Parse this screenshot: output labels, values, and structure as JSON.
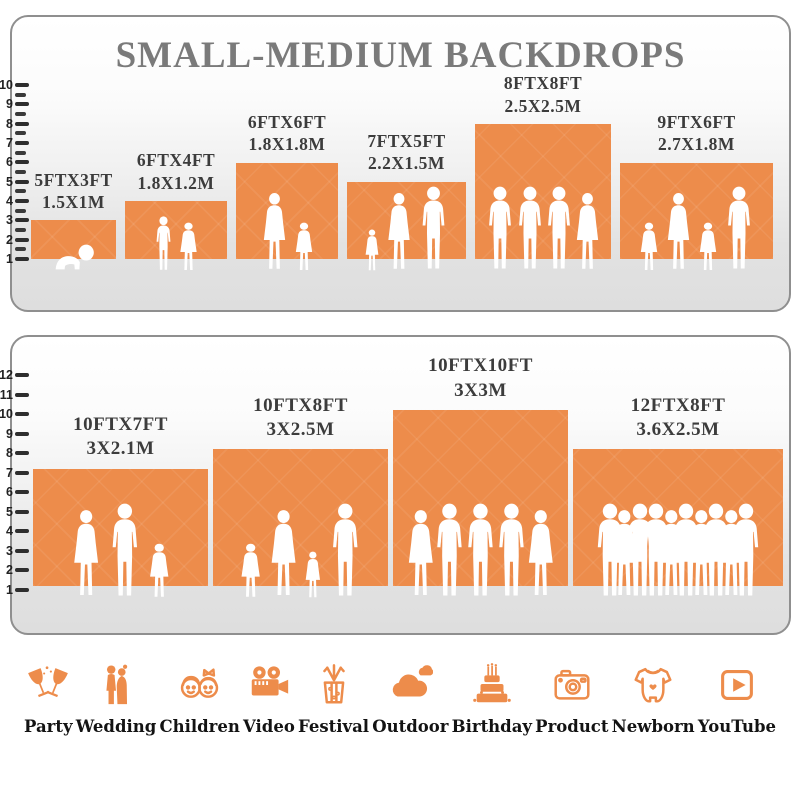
{
  "title": "SMALL-MEDIUM BACKDROPS",
  "accent_color": "#ED8C4B",
  "panels": [
    {
      "name": "small-medium",
      "ruler": {
        "from": 1,
        "to": 10,
        "half_ticks": true
      },
      "backdrops": [
        {
          "size_ft": "5FTX3FT",
          "size_m": "1.5X1M",
          "width_ft": 5,
          "height_ft": 3,
          "people": [
            "baby"
          ]
        },
        {
          "size_ft": "6FTX4FT",
          "size_m": "1.8X1.2M",
          "width_ft": 6,
          "height_ft": 4,
          "people": [
            "boy",
            "girl"
          ]
        },
        {
          "size_ft": "6FTX6FT",
          "size_m": "1.8X1.8M",
          "width_ft": 6,
          "height_ft": 6,
          "people": [
            "woman",
            "girl"
          ]
        },
        {
          "size_ft": "7FTX5FT",
          "size_m": "2.2X1.5M",
          "width_ft": 7,
          "height_ft": 5,
          "people": [
            "toddler",
            "woman",
            "man"
          ]
        },
        {
          "size_ft": "8FTX8FT",
          "size_m": "2.5X2.5M",
          "width_ft": 8,
          "height_ft": 8,
          "people": [
            "man",
            "man",
            "man",
            "woman"
          ]
        },
        {
          "size_ft": "9FTX6FT",
          "size_m": "2.7X1.8M",
          "width_ft": 9,
          "height_ft": 6,
          "people": [
            "girl",
            "woman",
            "girl",
            "man"
          ]
        }
      ]
    },
    {
      "name": "medium-large",
      "ruler": {
        "from": 1,
        "to": 12,
        "half_ticks": false
      },
      "backdrops": [
        {
          "size_ft": "10FTX7FT",
          "size_m": "3X2.1M",
          "width_ft": 10,
          "height_ft": 7,
          "people": [
            "woman",
            "man",
            "girl"
          ]
        },
        {
          "size_ft": "10FTX8FT",
          "size_m": "3X2.5M",
          "width_ft": 10,
          "height_ft": 8,
          "people": [
            "girl",
            "woman",
            "toddler",
            "man"
          ]
        },
        {
          "size_ft": "10FTX10FT",
          "size_m": "3X3M",
          "width_ft": 10,
          "height_ft": 10,
          "people": [
            "woman",
            "man",
            "man",
            "man",
            "woman"
          ]
        },
        {
          "size_ft": "12FTX8FT",
          "size_m": "3.6X2.5M",
          "width_ft": 12,
          "height_ft": 8,
          "people": [
            "man",
            "woman",
            "man",
            "man",
            "woman",
            "man",
            "woman",
            "man",
            "woman",
            "man"
          ]
        }
      ]
    }
  ],
  "categories": [
    {
      "label": "Party",
      "icon": "party-icon"
    },
    {
      "label": "Wedding",
      "icon": "wedding-icon"
    },
    {
      "label": "Children",
      "icon": "children-icon"
    },
    {
      "label": "Video",
      "icon": "video-icon"
    },
    {
      "label": "Festival",
      "icon": "festival-icon"
    },
    {
      "label": "Outdoor",
      "icon": "outdoor-icon"
    },
    {
      "label": "Birthday",
      "icon": "birthday-icon"
    },
    {
      "label": "Product",
      "icon": "product-icon"
    },
    {
      "label": "Newborn",
      "icon": "newborn-icon"
    },
    {
      "label": "YouTube",
      "icon": "youtube-icon"
    }
  ]
}
